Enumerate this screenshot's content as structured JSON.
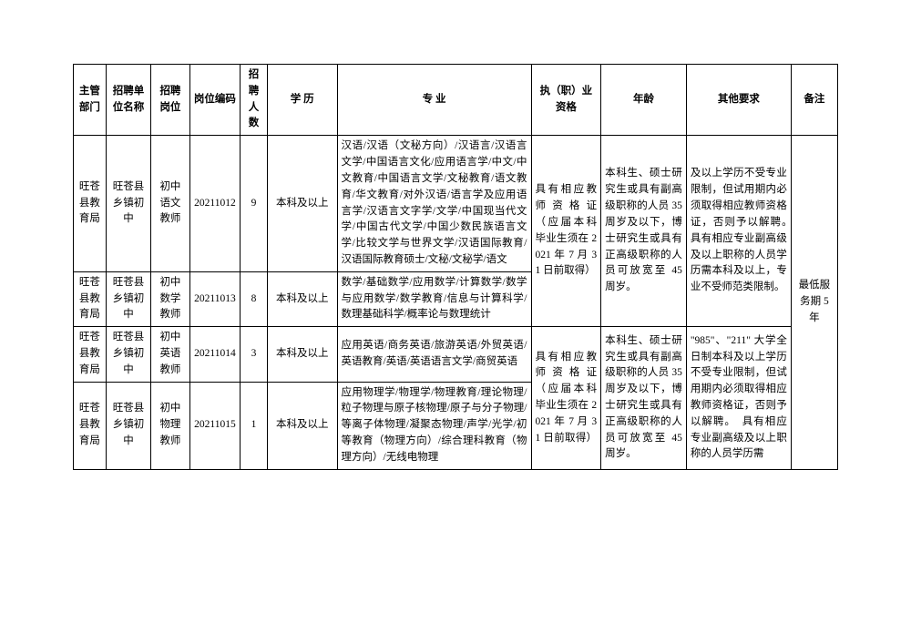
{
  "headers": {
    "dept": "主管部门",
    "unit": "招聘单位名称",
    "post": "招聘岗位",
    "code": "岗位编码",
    "num": "招聘人数",
    "edu": "学 历",
    "major": "专 业",
    "qual": "执（职）业资格",
    "age": "年龄",
    "other": "其他要求",
    "note": "备注"
  },
  "rows": [
    {
      "dept": "旺苍县教育局",
      "unit": "旺苍县乡镇初中",
      "post": "初中语文教师",
      "code": "20211012",
      "num": "9",
      "edu": "本科及以上",
      "major": "汉语/汉语（文秘方向）/汉语言/汉语言文学/中国语言文化/应用语言学/中文/中文教育/中国语言文学/文秘教育/语文教育/华文教育/对外汉语/语言学及应用语言学/汉语言文字学/文学/中国现当代文学/中国古代文学/中国少数民族语言文学/比较文学与世界文学/汉语国际教育/汉语国际教育硕士/文秘/文秘学/语文"
    },
    {
      "dept": "旺苍县教育局",
      "unit": "旺苍县乡镇初中",
      "post": "初中数学教师",
      "code": "20211013",
      "num": "8",
      "edu": "本科及以上",
      "major": "数学/基础数学/应用数学/计算数学/数学与应用数学/数学教育/信息与计算科学/数理基础科学/概率论与数理统计"
    },
    {
      "dept": "旺苍县教育局",
      "unit": "旺苍县乡镇初中",
      "post": "初中英语教师",
      "code": "20211014",
      "num": "3",
      "edu": "本科及以上",
      "major": "应用英语/商务英语/旅游英语/外贸英语/英语教育/英语/英语语言文学/商贸英语"
    },
    {
      "dept": "旺苍县教育局",
      "unit": "旺苍县乡镇初中",
      "post": "初中物理教师",
      "code": "20211015",
      "num": "1",
      "edu": "本科及以上",
      "major": "应用物理学/物理学/物理教育/理论物理/粒子物理与原子核物理/原子与分子物理/等离子体物理/凝聚态物理/声学/光学/初等教育（物理方向）/综合理科教育（物理方向）/无线电物理"
    }
  ],
  "qual_group1": "具有相应教师资格证（应届本科毕业生须在 2021 年 7 月 31 日前取得）",
  "age_group1": "本科生、硕士研究生或具有副高级职称的人员 35 周岁及以下，博士研究生或具有正高级职称的人员可放宽至 45 周岁。",
  "other_group1": "及以上学历不受专业限制，但试用期内必须取得相应教师资格证，否则予以解聘。　具有相应专业副高级及以上职称的人员学历需本科及以上，专业不受师范类限制。",
  "qual_group2": "具有相应教师资格证（应届本科毕业生须在 2021 年 7 月 31 日前取得）",
  "age_group2": "本科生、硕士研究生或具有副高级职称的人员 35 周岁及以下，博士研究生或具有正高级职称的人员可放宽至 45 周岁。",
  "other_group2": "\"985\"、\"211\" 大学全日制本科及以上学历不受专业限制，但试用期内必须取得相应教师资格证，否则予以解聘。　具有相应专业副高级及以上职称的人员学历需",
  "note_all": "最低服务期 5 年"
}
